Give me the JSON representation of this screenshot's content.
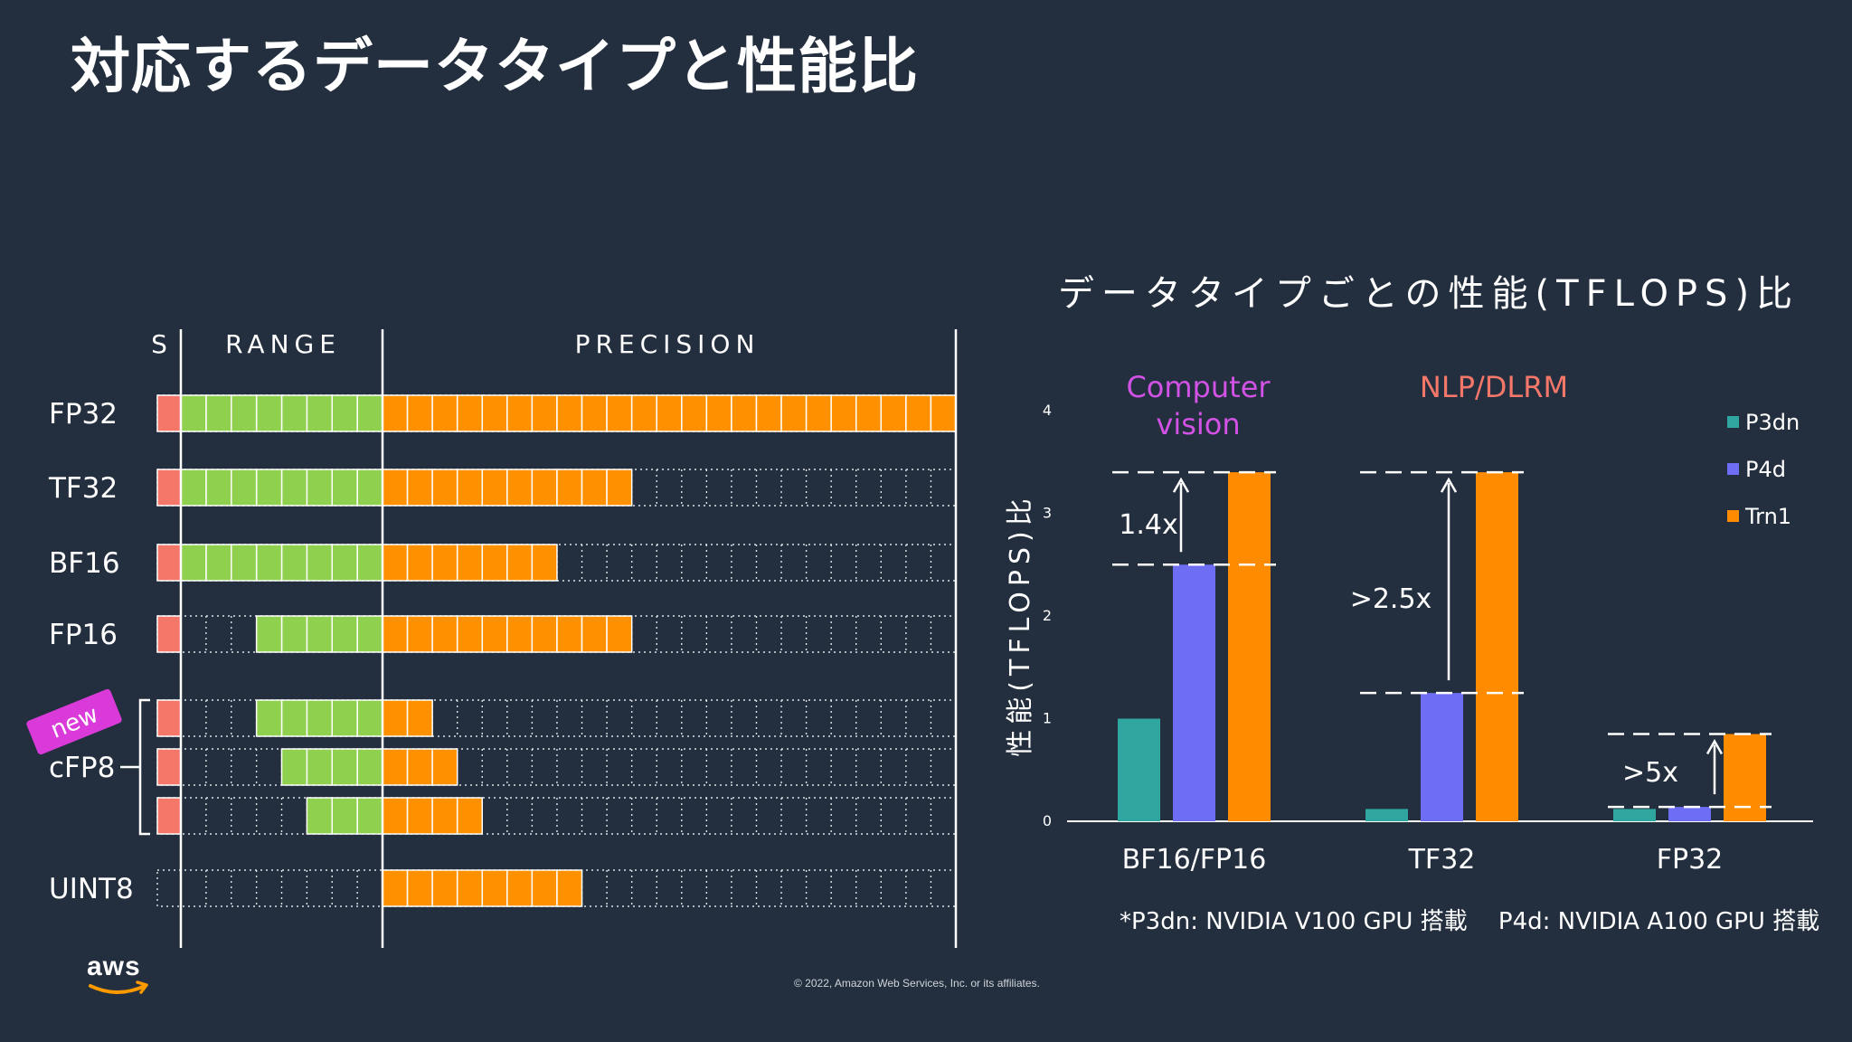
{
  "title": "対応するデータタイプと性能比",
  "left_diagram": {
    "headers": {
      "sign": "S",
      "range": "RANGE",
      "precision": "PRECISION"
    },
    "new_badge": "new",
    "colors": {
      "sign": "#f4776a",
      "range": "#8fd14f",
      "precision": "#ff9100"
    },
    "rows": [
      {
        "label": "FP32",
        "sign": 1,
        "exponent": 8,
        "mantissa": 23,
        "show_label": true
      },
      {
        "label": "TF32",
        "sign": 1,
        "exponent": 8,
        "mantissa": 10,
        "show_label": true
      },
      {
        "label": "BF16",
        "sign": 1,
        "exponent": 8,
        "mantissa": 7,
        "show_label": true
      },
      {
        "label": "FP16",
        "sign": 1,
        "exponent": 5,
        "mantissa": 10,
        "show_label": true
      },
      {
        "label": "cFP8",
        "sign": 1,
        "exponent": 5,
        "mantissa": 2,
        "show_label": false
      },
      {
        "label": "cFP8",
        "sign": 1,
        "exponent": 4,
        "mantissa": 3,
        "show_label": true
      },
      {
        "label": "cFP8",
        "sign": 1,
        "exponent": 3,
        "mantissa": 4,
        "show_label": false
      },
      {
        "label": "UINT8",
        "sign": 0,
        "exponent": 0,
        "mantissa": 8,
        "show_label": true
      }
    ]
  },
  "chart_data": {
    "type": "bar",
    "title": "データタイプごとの性能(TFLOPS)比",
    "ylabel": "性能(TFLOPS)比",
    "xlabel": "",
    "ylim": [
      0,
      4
    ],
    "yticks": [
      0,
      1,
      2,
      3,
      4
    ],
    "categories": [
      "BF16/FP16",
      "TF32",
      "FP32"
    ],
    "series": [
      {
        "name": "P3dn",
        "color": "#2fa7a0",
        "values": [
          1.0,
          0.12,
          0.12
        ]
      },
      {
        "name": "P4d",
        "color": "#6e6ef5",
        "values": [
          2.5,
          1.25,
          0.14
        ]
      },
      {
        "name": "Trn1",
        "color": "#ff8c00",
        "values": [
          3.4,
          3.4,
          0.85
        ]
      }
    ],
    "group_labels": [
      {
        "text": "Computer\nvision",
        "color": "#d252e6"
      },
      {
        "text": "NLP/DLRM",
        "color": "#f4776a"
      }
    ],
    "annotations": [
      "1.4x",
      ">2.5x",
      ">5x"
    ],
    "legend_position": "right"
  },
  "footnote": "*P3dn: NVIDIA V100 GPU 搭載　 P4d: NVIDIA A100 GPU 搭載",
  "copyright": "© 2022, Amazon Web Services, Inc. or its affiliates.",
  "logo_text": "aws"
}
